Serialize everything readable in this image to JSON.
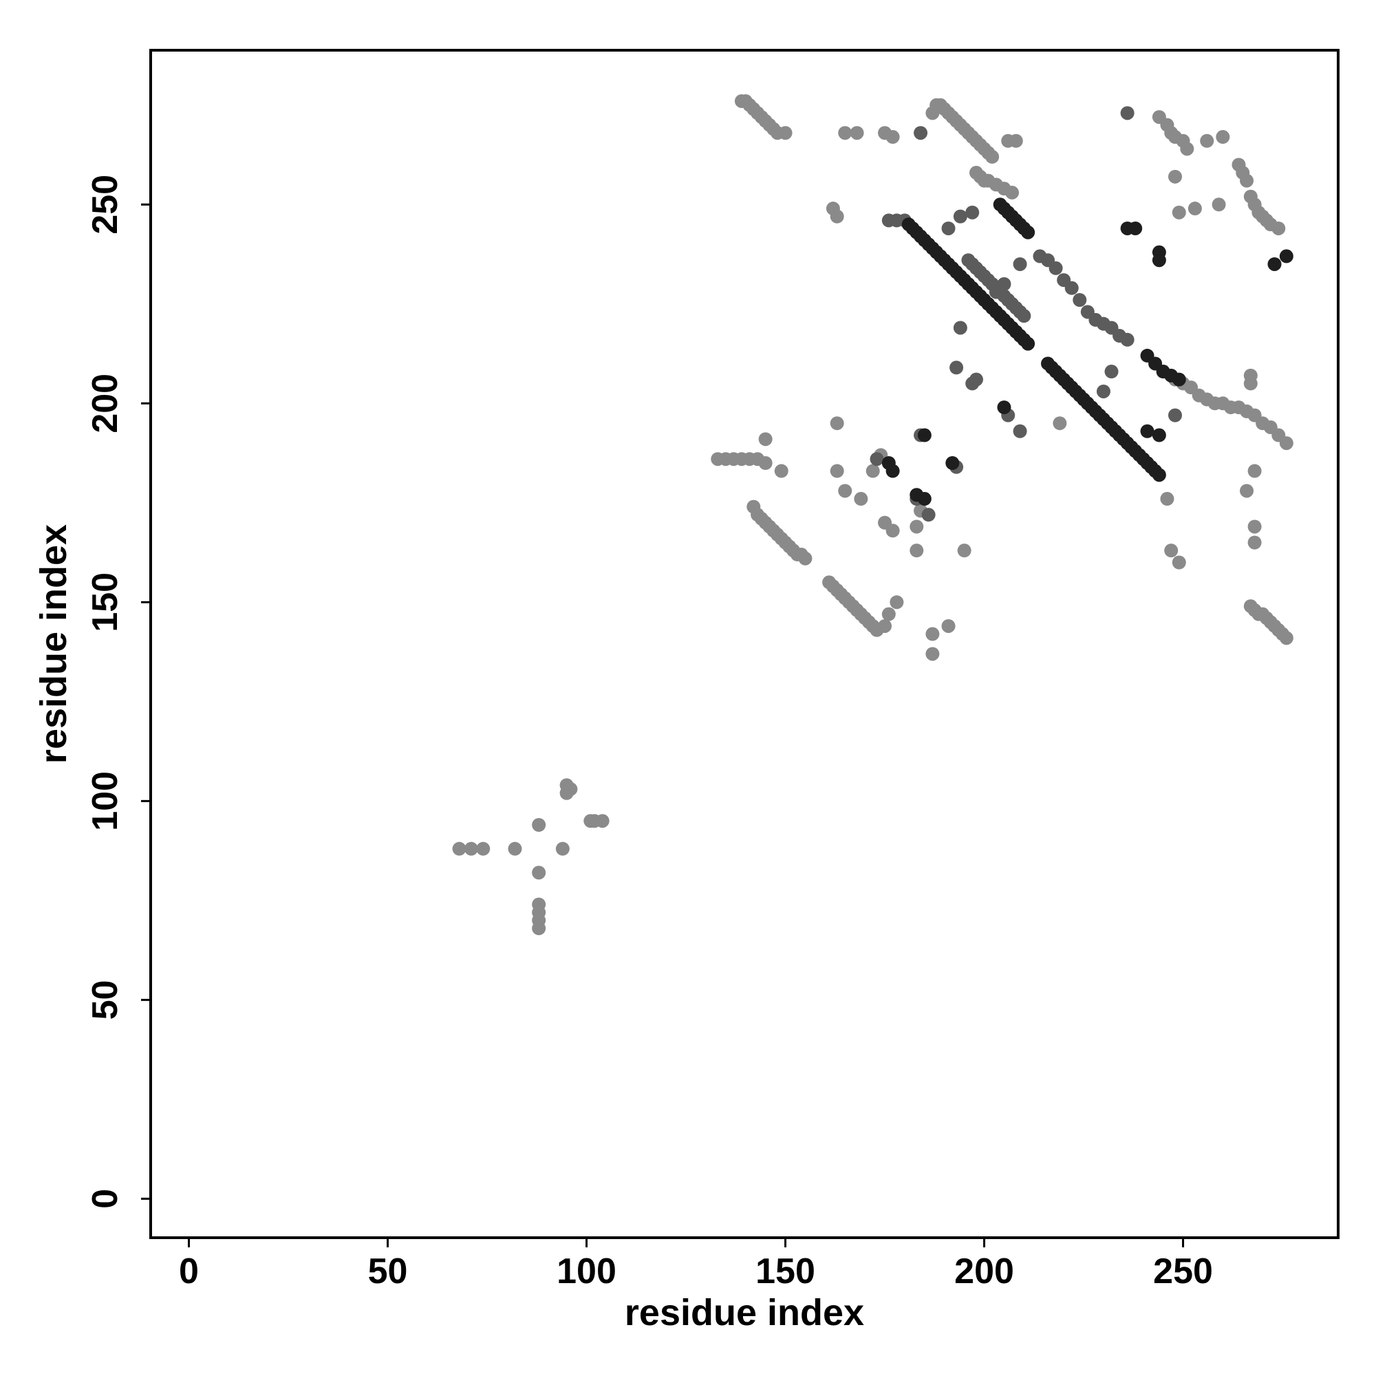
{
  "chart_data": {
    "type": "scatter",
    "xlabel": "residue index",
    "ylabel": "residue index",
    "xlim": [
      -9.6,
      289
    ],
    "ylim": [
      -9.8,
      288.8
    ],
    "xticks": [
      0,
      50,
      100,
      150,
      200,
      250
    ],
    "yticks": [
      0,
      50,
      100,
      150,
      200,
      250
    ],
    "series": [
      {
        "color": "#8a8a8a",
        "x": [
          68,
          71,
          74,
          82,
          88,
          88,
          88,
          88,
          88,
          88,
          94,
          95,
          96,
          95,
          101,
          102,
          104,
          139,
          140,
          141,
          142,
          143,
          144,
          145,
          146,
          147,
          148,
          150,
          165,
          168,
          175,
          177,
          187,
          188,
          189,
          190,
          191,
          192,
          193,
          194,
          195,
          196,
          197,
          198,
          199,
          200,
          201,
          202,
          206,
          208,
          198,
          199,
          200,
          201,
          203,
          205,
          207,
          244,
          246,
          247,
          248,
          250,
          251,
          256,
          260,
          248,
          249,
          253,
          259,
          264,
          265,
          266,
          267,
          268,
          269,
          270,
          271,
          272,
          274,
          245,
          248,
          250,
          252,
          254,
          256,
          258,
          260,
          262,
          264,
          266,
          268,
          270,
          272,
          274,
          276,
          267,
          268,
          269,
          270,
          271,
          272,
          273,
          274,
          275,
          276,
          268,
          268,
          268,
          266,
          267,
          267,
          246,
          247,
          249,
          133,
          135,
          137,
          139,
          141,
          143,
          145,
          149,
          145,
          142,
          143,
          144,
          145,
          146,
          147,
          148,
          149,
          150,
          151,
          152,
          153,
          154,
          155,
          161,
          162,
          163,
          164,
          165,
          166,
          167,
          168,
          169,
          170,
          171,
          172,
          173,
          175,
          176,
          178,
          162,
          163,
          163,
          163,
          165,
          169,
          172,
          174,
          175,
          177,
          183,
          183,
          184,
          187,
          187,
          191,
          195,
          219
        ],
        "y": [
          88,
          88,
          88,
          88,
          94,
          82,
          74,
          72,
          70,
          68,
          88,
          102,
          103,
          104,
          95,
          95,
          95,
          276,
          276,
          275,
          274,
          273,
          272,
          271,
          270,
          269,
          268,
          268,
          268,
          268,
          268,
          267,
          273,
          275,
          275,
          274,
          273,
          272,
          271,
          270,
          269,
          268,
          267,
          266,
          265,
          264,
          263,
          262,
          266,
          266,
          258,
          257,
          256,
          256,
          255,
          254,
          253,
          272,
          270,
          268,
          267,
          266,
          264,
          266,
          267,
          257,
          248,
          249,
          250,
          260,
          258,
          256,
          252,
          250,
          248,
          247,
          246,
          245,
          244,
          208,
          206,
          205,
          204,
          202,
          201,
          200,
          200,
          199,
          199,
          198,
          197,
          195,
          194,
          192,
          190,
          149,
          148,
          147,
          147,
          146,
          145,
          144,
          143,
          142,
          141,
          183,
          169,
          165,
          178,
          207,
          205,
          176,
          163,
          160,
          186,
          186,
          186,
          186,
          186,
          186,
          185,
          183,
          191,
          174,
          172,
          171,
          170,
          169,
          168,
          167,
          166,
          165,
          164,
          163,
          162,
          162,
          161,
          155,
          154,
          153,
          152,
          151,
          150,
          149,
          148,
          147,
          146,
          145,
          144,
          143,
          144,
          147,
          150,
          249,
          247,
          195,
          183,
          178,
          176,
          183,
          187,
          170,
          168,
          163,
          169,
          173,
          142,
          137,
          144,
          163,
          195
        ]
      },
      {
        "color": "#5c5c5c",
        "x": [
          176,
          178,
          180,
          196,
          197,
          198,
          199,
          200,
          201,
          202,
          203,
          204,
          205,
          206,
          207,
          208,
          209,
          210,
          214,
          209,
          205,
          203,
          191,
          194,
          197,
          216,
          218,
          220,
          222,
          224,
          226,
          228,
          230,
          232,
          234,
          236,
          184,
          236,
          232,
          230,
          248,
          173,
          183,
          184,
          186,
          194,
          193,
          198,
          193,
          197,
          206,
          209
        ],
        "y": [
          246,
          246,
          246,
          236,
          235,
          234,
          233,
          232,
          231,
          230,
          229,
          228,
          227,
          226,
          225,
          224,
          223,
          222,
          237,
          235,
          230,
          228,
          244,
          247,
          248,
          236,
          234,
          231,
          229,
          226,
          223,
          221,
          220,
          219,
          217,
          216,
          268,
          273,
          208,
          203,
          197,
          186,
          176,
          192,
          172,
          219,
          209,
          206,
          184,
          205,
          197,
          193
        ]
      },
      {
        "color": "#1e1e1e",
        "x": [
          181,
          182,
          183,
          184,
          185,
          186,
          187,
          188,
          189,
          190,
          191,
          192,
          193,
          194,
          195,
          196,
          197,
          198,
          199,
          200,
          201,
          202,
          203,
          204,
          205,
          206,
          207,
          208,
          209,
          210,
          211,
          204,
          205,
          206,
          207,
          208,
          209,
          210,
          211,
          216,
          217,
          218,
          219,
          220,
          221,
          222,
          223,
          224,
          225,
          226,
          227,
          228,
          229,
          230,
          231,
          232,
          233,
          234,
          235,
          236,
          237,
          238,
          239,
          240,
          241,
          242,
          243,
          244,
          241,
          243,
          245,
          247,
          249,
          236,
          238,
          244,
          244,
          273,
          276,
          205,
          176,
          177,
          183,
          185,
          185,
          192,
          244,
          241
        ],
        "y": [
          245,
          244,
          243,
          242,
          241,
          240,
          239,
          238,
          237,
          236,
          235,
          234,
          233,
          232,
          231,
          230,
          229,
          228,
          227,
          226,
          225,
          224,
          223,
          222,
          221,
          220,
          219,
          218,
          217,
          216,
          215,
          250,
          249,
          248,
          247,
          246,
          245,
          244,
          243,
          210,
          209,
          208,
          207,
          206,
          205,
          204,
          203,
          202,
          201,
          200,
          199,
          198,
          197,
          196,
          195,
          194,
          193,
          192,
          191,
          190,
          189,
          188,
          187,
          186,
          185,
          184,
          183,
          182,
          212,
          210,
          208,
          207,
          206,
          244,
          244,
          238,
          236,
          235,
          237,
          199,
          185,
          183,
          177,
          176,
          192,
          185,
          192,
          193
        ]
      }
    ]
  }
}
